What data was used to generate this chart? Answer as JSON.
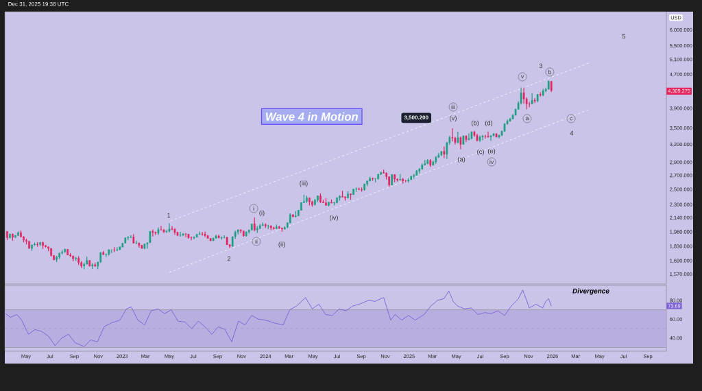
{
  "chart_data": [
    {
      "type": "candlestick",
      "ylabel": "USD",
      "log": true,
      "tick_labels": "y",
      "colors": [
        "#e3245e",
        "#1f9e83",
        "#e3245e",
        "#1f9e83",
        "#1f9e83",
        "#e3245e",
        "#e3245e",
        "#e3245e",
        "#e3245e",
        "#1f9e83",
        "#1f9e83",
        "#e3245e",
        "#1f9e83",
        "#e3245e",
        "#e3245e",
        "#e3245e",
        "#e3245e",
        "#e3245e",
        "#1f9e83",
        "#1f9e83",
        "#1f9e83",
        "#1f9e83",
        "#e3245e",
        "#e3245e",
        "#e3245e",
        "#1f9e83",
        "#e3245e",
        "#e3245e",
        "#1f9e83",
        "#1f9e83",
        "#e3245e",
        "#1f9e83",
        "#e3245e",
        "#1f9e83",
        "#1f9e83",
        "#e3245e",
        "#1f9e83",
        "#1f9e83",
        "#1f9e83",
        "#e3245e",
        "#1f9e83",
        "#1f9e83",
        "#1f9e83",
        "#1f9e83",
        "#1f9e83",
        "#1f9e83",
        "#e3245e",
        "#1f9e83",
        "#e3245e",
        "#e3245e",
        "#1f9e83",
        "#1f9e83",
        "#1f9e83",
        "#e3245e",
        "#e3245e",
        "#1f9e83",
        "#e3245e",
        "#e3245e",
        "#1f9e83",
        "#1f9e83",
        "#e3245e",
        "#e3245e",
        "#e3245e",
        "#1f9e83",
        "#1f9e83",
        "#e3245e",
        "#e3245e",
        "#e3245e",
        "#1f9e83",
        "#1f9e83",
        "#1f9e83",
        "#e3245e",
        "#e3245e",
        "#e3245e",
        "#e3245e",
        "#1f9e83",
        "#1f9e83",
        "#e3245e",
        "#1f9e83",
        "#1f9e83",
        "#e3245e",
        "#e3245e",
        "#1f9e83",
        "#1f9e83",
        "#1f9e83",
        "#e3245e",
        "#e3245e",
        "#1f9e83",
        "#1f9e83",
        "#1f9e83",
        "#e3245e",
        "#1f9e83",
        "#1f9e83",
        "#1f9e83",
        "#e3245e",
        "#1f9e83",
        "#e3245e",
        "#e3245e",
        "#1f9e83",
        "#e3245e",
        "#e3245e",
        "#1f9e83",
        "#1f9e83",
        "#1f9e83",
        "#e3245e",
        "#1f9e83",
        "#1f9e83",
        "#1f9e83",
        "#1f9e83",
        "#1f9e83",
        "#e3245e",
        "#e3245e",
        "#1f9e83",
        "#1f9e83",
        "#e3245e",
        "#e3245e",
        "#e3245e",
        "#1f9e83",
        "#e3245e",
        "#1f9e83",
        "#1f9e83",
        "#1f9e83",
        "#e3245e",
        "#e3245e",
        "#1f9e83",
        "#e3245e",
        "#1f9e83",
        "#1f9e83",
        "#e3245e",
        "#e3245e",
        "#1f9e83",
        "#1f9e83",
        "#1f9e83",
        "#e3245e",
        "#1f9e83",
        "#1f9e83",
        "#1f9e83",
        "#e3245e",
        "#e3245e",
        "#e3245e",
        "#1f9e83",
        "#e3245e",
        "#e3245e",
        "#1f9e83",
        "#e3245e",
        "#e3245e",
        "#1f9e83",
        "#1f9e83",
        "#1f9e83",
        "#1f9e83",
        "#1f9e83",
        "#1f9e83",
        "#1f9e83",
        "#1f9e83",
        "#e3245e",
        "#1f9e83",
        "#1f9e83",
        "#1f9e83",
        "#1f9e83",
        "#e3245e",
        "#1f9e83",
        "#1f9e83",
        "#e3245e",
        "#e3245e",
        "#1f9e83",
        "#e3245e",
        "#1f9e83",
        "#e3245e",
        "#1f9e83",
        "#1f9e83",
        "#e3245e",
        "#e3245e",
        "#1f9e83",
        "#1f9e83",
        "#e3245e",
        "#e3245e",
        "#1f9e83",
        "#1f9e83",
        "#e3245e",
        "#1f9e83",
        "#1f9e83",
        "#1f9e83",
        "#1f9e83",
        "#1f9e83",
        "#1f9e83",
        "#1f9e83",
        "#1f9e83",
        "#1f9e83",
        "#e3245e",
        "#e3245e",
        "#e3245e",
        "#1f9e83",
        "#e3245e",
        "#1f9e83",
        "#e3245e",
        "#1f9e83",
        "#1f9e83",
        "#1f9e83",
        "#e3245e"
      ],
      "xlim": [
        "2022-03-08",
        "2026-10-18"
      ],
      "xticks": [
        {
          "value": "2022-05-01",
          "label": null
        },
        {
          "value": "2022-07-01",
          "label": null
        },
        {
          "value": "2022-09-01",
          "label": null
        },
        {
          "value": "2022-11-01",
          "label": null
        },
        {
          "value": "2023-01-01",
          "label": null
        },
        {
          "value": "2023-03-01",
          "label": null
        },
        {
          "value": "2023-05-01",
          "label": null
        },
        {
          "value": "2023-07-01",
          "label": null
        },
        {
          "value": "2023-09-01",
          "label": null
        },
        {
          "value": "2023-11-01",
          "label": null
        },
        {
          "value": "2024-01-01",
          "label": null
        },
        {
          "value": "2024-03-01",
          "label": null
        },
        {
          "value": "2024-05-01",
          "label": null
        },
        {
          "value": "2024-07-01",
          "label": null
        },
        {
          "value": "2024-09-01",
          "label": null
        },
        {
          "value": "2024-11-01",
          "label": null
        },
        {
          "value": "2025-01-01",
          "label": null
        },
        {
          "value": "2025-03-01",
          "label": null
        },
        {
          "value": "2025-05-01",
          "label": null
        },
        {
          "value": "2025-07-01",
          "label": null
        },
        {
          "value": "2025-09-01",
          "label": null
        },
        {
          "value": "2025-11-01",
          "label": null
        },
        {
          "value": "2026-01-01",
          "label": null
        },
        {
          "value": "2026-03-01",
          "label": null
        },
        {
          "value": "2026-05-01",
          "label": null
        },
        {
          "value": "2026-07-01",
          "label": null
        },
        {
          "value": "2026-09-01",
          "label": null
        }
      ],
      "ylim": [
        1490,
        6640
      ],
      "yticks": [
        {
          "value": 1570,
          "label": "1,570.000"
        },
        {
          "value": 1690,
          "label": "1,690.000"
        },
        {
          "value": 1830,
          "label": "1,830.000"
        },
        {
          "value": 1980,
          "label": "1,980.000"
        },
        {
          "value": 2140,
          "label": "2,140.000"
        },
        {
          "value": 2300,
          "label": "2,300.000"
        },
        {
          "value": 2500,
          "label": "2,500.000"
        },
        {
          "value": 2700,
          "label": "2,700.000"
        },
        {
          "value": 2900,
          "label": "2,900.000"
        },
        {
          "value": 3200,
          "label": "3,200.000"
        },
        {
          "value": 3500,
          "label": "3,500.000"
        },
        {
          "value": 3900,
          "label": "3,900.000"
        },
        {
          "value": 4700,
          "label": "4,700.000"
        },
        {
          "value": 5100,
          "label": "5,100.000"
        },
        {
          "value": 5500,
          "label": "5,500.000"
        },
        {
          "value": 6000,
          "label": "6,000.000"
        }
      ],
      "x": [
        "2022-03-14",
        "2022-03-21",
        "2022-03-28",
        "2022-04-04",
        "2022-04-11",
        "2022-04-18",
        "2022-04-25",
        "2022-05-02",
        "2022-05-09",
        "2022-05-16",
        "2022-05-23",
        "2022-05-30",
        "2022-06-06",
        "2022-06-13",
        "2022-06-20",
        "2022-06-27",
        "2022-07-04",
        "2022-07-11",
        "2022-07-18",
        "2022-07-25",
        "2022-08-01",
        "2022-08-08",
        "2022-08-15",
        "2022-08-22",
        "2022-08-29",
        "2022-09-05",
        "2022-09-12",
        "2022-09-19",
        "2022-09-26",
        "2022-10-03",
        "2022-10-10",
        "2022-10-17",
        "2022-10-24",
        "2022-10-31",
        "2022-11-07",
        "2022-11-14",
        "2022-11-21",
        "2022-11-28",
        "2022-12-05",
        "2022-12-12",
        "2022-12-19",
        "2022-12-26",
        "2023-01-02",
        "2023-01-09",
        "2023-01-16",
        "2023-01-23",
        "2023-01-30",
        "2023-02-06",
        "2023-02-13",
        "2023-02-20",
        "2023-02-27",
        "2023-03-06",
        "2023-03-13",
        "2023-03-20",
        "2023-03-27",
        "2023-04-03",
        "2023-04-10",
        "2023-04-17",
        "2023-04-24",
        "2023-05-01",
        "2023-05-08",
        "2023-05-15",
        "2023-05-22",
        "2023-05-29",
        "2023-06-05",
        "2023-06-12",
        "2023-06-19",
        "2023-06-26",
        "2023-07-03",
        "2023-07-10",
        "2023-07-17",
        "2023-07-24",
        "2023-07-31",
        "2023-08-07",
        "2023-08-14",
        "2023-08-21",
        "2023-08-28",
        "2023-09-04",
        "2023-09-11",
        "2023-09-18",
        "2023-09-25",
        "2023-10-02",
        "2023-10-09",
        "2023-10-16",
        "2023-10-23",
        "2023-10-30",
        "2023-11-06",
        "2023-11-13",
        "2023-11-20",
        "2023-11-27",
        "2023-12-04",
        "2023-12-11",
        "2023-12-18",
        "2023-12-25",
        "2024-01-01",
        "2024-01-08",
        "2024-01-15",
        "2024-01-22",
        "2024-01-29",
        "2024-02-05",
        "2024-02-12",
        "2024-02-19",
        "2024-02-26",
        "2024-03-04",
        "2024-03-11",
        "2024-03-18",
        "2024-03-25",
        "2024-04-01",
        "2024-04-08",
        "2024-04-15",
        "2024-04-22",
        "2024-04-29",
        "2024-05-06",
        "2024-05-13",
        "2024-05-20",
        "2024-05-27",
        "2024-06-03",
        "2024-06-10",
        "2024-06-17",
        "2024-06-24",
        "2024-07-01",
        "2024-07-08",
        "2024-07-15",
        "2024-07-22",
        "2024-07-29",
        "2024-08-05",
        "2024-08-12",
        "2024-08-19",
        "2024-08-26",
        "2024-09-02",
        "2024-09-09",
        "2024-09-16",
        "2024-09-23",
        "2024-09-30",
        "2024-10-07",
        "2024-10-14",
        "2024-10-21",
        "2024-10-28",
        "2024-11-04",
        "2024-11-11",
        "2024-11-18",
        "2024-11-25",
        "2024-12-02",
        "2024-12-09",
        "2024-12-16",
        "2024-12-23",
        "2024-12-30",
        "2025-01-06",
        "2025-01-13",
        "2025-01-20",
        "2025-01-27",
        "2025-02-03",
        "2025-02-10",
        "2025-02-17",
        "2025-02-24",
        "2025-03-03",
        "2025-03-10",
        "2025-03-17",
        "2025-03-24",
        "2025-03-31",
        "2025-04-07",
        "2025-04-14",
        "2025-04-21",
        "2025-04-28",
        "2025-05-05",
        "2025-05-12",
        "2025-05-19",
        "2025-05-26",
        "2025-06-02",
        "2025-06-09",
        "2025-06-16",
        "2025-06-23",
        "2025-06-30",
        "2025-07-07",
        "2025-07-14",
        "2025-07-21",
        "2025-07-28",
        "2025-08-04",
        "2025-08-11",
        "2025-08-18",
        "2025-08-25",
        "2025-09-01",
        "2025-09-08",
        "2025-09-15",
        "2025-09-22",
        "2025-09-29",
        "2025-10-06",
        "2025-10-13",
        "2025-10-20",
        "2025-10-27",
        "2025-11-03",
        "2025-11-10",
        "2025-11-17",
        "2025-11-24",
        "2025-12-01",
        "2025-12-08",
        "2025-12-15",
        "2025-12-22",
        "2025-12-29"
      ],
      "ohlc": [
        [
          1988,
          1990,
          1895,
          1921
        ],
        [
          1921,
          1966,
          1910,
          1958
        ],
        [
          1958,
          1966,
          1890,
          1925
        ],
        [
          1925,
          1948,
          1916,
          1945
        ],
        [
          1945,
          1988,
          1940,
          1975
        ],
        [
          1975,
          1998,
          1925,
          1931
        ],
        [
          1931,
          1936,
          1872,
          1896
        ],
        [
          1896,
          1909,
          1851,
          1883
        ],
        [
          1883,
          1884,
          1807,
          1811
        ],
        [
          1811,
          1849,
          1787,
          1846
        ],
        [
          1846,
          1870,
          1840,
          1853
        ],
        [
          1853,
          1874,
          1828,
          1850
        ],
        [
          1850,
          1876,
          1836,
          1871
        ],
        [
          1871,
          1880,
          1805,
          1839
        ],
        [
          1839,
          1847,
          1822,
          1827
        ],
        [
          1827,
          1830,
          1784,
          1811
        ],
        [
          1811,
          1812,
          1733,
          1742
        ],
        [
          1742,
          1745,
          1697,
          1703
        ],
        [
          1703,
          1739,
          1680,
          1727
        ],
        [
          1727,
          1767,
          1711,
          1766
        ],
        [
          1766,
          1795,
          1754,
          1775
        ],
        [
          1775,
          1808,
          1769,
          1802
        ],
        [
          1802,
          1803,
          1746,
          1747
        ],
        [
          1747,
          1765,
          1728,
          1737
        ],
        [
          1737,
          1740,
          1688,
          1712
        ],
        [
          1712,
          1729,
          1691,
          1717
        ],
        [
          1717,
          1735,
          1654,
          1675
        ],
        [
          1675,
          1688,
          1626,
          1644
        ],
        [
          1644,
          1676,
          1615,
          1661
        ],
        [
          1661,
          1730,
          1660,
          1695
        ],
        [
          1695,
          1700,
          1640,
          1644
        ],
        [
          1644,
          1669,
          1618,
          1656
        ],
        [
          1656,
          1675,
          1637,
          1644
        ],
        [
          1644,
          1682,
          1617,
          1681
        ],
        [
          1681,
          1774,
          1672,
          1770
        ],
        [
          1770,
          1787,
          1747,
          1751
        ],
        [
          1751,
          1760,
          1728,
          1754
        ],
        [
          1754,
          1804,
          1742,
          1797
        ],
        [
          1797,
          1800,
          1765,
          1797
        ],
        [
          1797,
          1824,
          1774,
          1793
        ],
        [
          1793,
          1823,
          1783,
          1798
        ],
        [
          1798,
          1833,
          1795,
          1824
        ],
        [
          1824,
          1865,
          1824,
          1865
        ],
        [
          1865,
          1921,
          1865,
          1920
        ],
        [
          1920,
          1937,
          1896,
          1926
        ],
        [
          1926,
          1949,
          1915,
          1929
        ],
        [
          1929,
          1960,
          1861,
          1865
        ],
        [
          1865,
          1890,
          1853,
          1865
        ],
        [
          1865,
          1871,
          1819,
          1842
        ],
        [
          1842,
          1847,
          1809,
          1811
        ],
        [
          1811,
          1858,
          1804,
          1855
        ],
        [
          1855,
          1869,
          1809,
          1868
        ],
        [
          1868,
          1990,
          1867,
          1989
        ],
        [
          1989,
          2010,
          1934,
          1978
        ],
        [
          1978,
          1987,
          1949,
          1969
        ],
        [
          1969,
          2032,
          1950,
          2007
        ],
        [
          2007,
          2049,
          2000,
          2004
        ],
        [
          2004,
          2015,
          1970,
          1983
        ],
        [
          1983,
          2004,
          1973,
          1990
        ],
        [
          1990,
          2079,
          1977,
          2016
        ],
        [
          2016,
          2048,
          2002,
          2011
        ],
        [
          2011,
          2022,
          1952,
          1977
        ],
        [
          1977,
          1985,
          1937,
          1946
        ],
        [
          1946,
          1983,
          1932,
          1948
        ],
        [
          1948,
          1971,
          1938,
          1961
        ],
        [
          1961,
          1971,
          1925,
          1958
        ],
        [
          1958,
          1959,
          1910,
          1921
        ],
        [
          1921,
          1934,
          1893,
          1919
        ],
        [
          1919,
          1935,
          1902,
          1925
        ],
        [
          1925,
          1963,
          1924,
          1955
        ],
        [
          1955,
          1987,
          1953,
          1962
        ],
        [
          1962,
          1982,
          1942,
          1959
        ],
        [
          1959,
          1987,
          1929,
          1943
        ],
        [
          1943,
          1948,
          1911,
          1914
        ],
        [
          1914,
          1915,
          1885,
          1889
        ],
        [
          1889,
          1922,
          1885,
          1914
        ],
        [
          1914,
          1953,
          1913,
          1940
        ],
        [
          1940,
          1953,
          1915,
          1919
        ],
        [
          1919,
          1933,
          1901,
          1923
        ],
        [
          1923,
          1947,
          1913,
          1925
        ],
        [
          1925,
          1931,
          1846,
          1848
        ],
        [
          1848,
          1851,
          1810,
          1832
        ],
        [
          1832,
          1933,
          1830,
          1932
        ],
        [
          1932,
          1997,
          1909,
          1981
        ],
        [
          1981,
          2009,
          1955,
          2006
        ],
        [
          2006,
          2010,
          1969,
          1993
        ],
        [
          1993,
          1994,
          1932,
          1940
        ],
        [
          1940,
          1988,
          1931,
          1981
        ],
        [
          1981,
          2008,
          1965,
          2002
        ],
        [
          2002,
          2075,
          2001,
          2072
        ],
        [
          2072,
          2146,
          1991,
          2004
        ],
        [
          2004,
          2047,
          1973,
          2019
        ],
        [
          2019,
          2070,
          2016,
          2053
        ],
        [
          2053,
          2088,
          2047,
          2063
        ],
        [
          2063,
          2079,
          2025,
          2049
        ],
        [
          2049,
          2062,
          2013,
          2049
        ],
        [
          2049,
          2055,
          2002,
          2029
        ],
        [
          2029,
          2037,
          2010,
          2018
        ],
        [
          2018,
          2065,
          2016,
          2039
        ],
        [
          2039,
          2049,
          2015,
          2024
        ],
        [
          2024,
          2031,
          1984,
          2013
        ],
        [
          2013,
          2041,
          2010,
          2035
        ],
        [
          2035,
          2088,
          2025,
          2083
        ],
        [
          2083,
          2195,
          2078,
          2179
        ],
        [
          2179,
          2185,
          2146,
          2155
        ],
        [
          2155,
          2223,
          2146,
          2165
        ],
        [
          2165,
          2236,
          2164,
          2233
        ],
        [
          2233,
          2330,
          2228,
          2329
        ],
        [
          2329,
          2431,
          2323,
          2344
        ],
        [
          2344,
          2418,
          2325,
          2392
        ],
        [
          2392,
          2393,
          2292,
          2338
        ],
        [
          2338,
          2352,
          2277,
          2302
        ],
        [
          2302,
          2378,
          2291,
          2360
        ],
        [
          2360,
          2422,
          2334,
          2415
        ],
        [
          2415,
          2450,
          2325,
          2334
        ],
        [
          2334,
          2364,
          2324,
          2327
        ],
        [
          2327,
          2388,
          2286,
          2294
        ],
        [
          2294,
          2339,
          2280,
          2333
        ],
        [
          2333,
          2368,
          2319,
          2322
        ],
        [
          2322,
          2338,
          2293,
          2326
        ],
        [
          2326,
          2392,
          2319,
          2392
        ],
        [
          2392,
          2424,
          2353,
          2411
        ],
        [
          2411,
          2484,
          2398,
          2400
        ],
        [
          2400,
          2412,
          2353,
          2387
        ],
        [
          2387,
          2477,
          2383,
          2443
        ],
        [
          2443,
          2448,
          2364,
          2431
        ],
        [
          2431,
          2509,
          2429,
          2507
        ],
        [
          2507,
          2531,
          2470,
          2512
        ],
        [
          2512,
          2528,
          2491,
          2503
        ],
        [
          2503,
          2529,
          2472,
          2497
        ],
        [
          2497,
          2586,
          2485,
          2577
        ],
        [
          2577,
          2626,
          2546,
          2622
        ],
        [
          2622,
          2685,
          2614,
          2658
        ],
        [
          2658,
          2670,
          2624,
          2653
        ],
        [
          2653,
          2660,
          2603,
          2656
        ],
        [
          2656,
          2722,
          2640,
          2721
        ],
        [
          2721,
          2758,
          2708,
          2747
        ],
        [
          2747,
          2790,
          2731,
          2736
        ],
        [
          2736,
          2750,
          2643,
          2684
        ],
        [
          2684,
          2686,
          2537,
          2563
        ],
        [
          2563,
          2721,
          2563,
          2716
        ],
        [
          2716,
          2721,
          2605,
          2650
        ],
        [
          2650,
          2657,
          2613,
          2633
        ],
        [
          2633,
          2726,
          2632,
          2648
        ],
        [
          2648,
          2664,
          2583,
          2622
        ],
        [
          2622,
          2638,
          2603,
          2621
        ],
        [
          2621,
          2665,
          2597,
          2640
        ],
        [
          2640,
          2697,
          2637,
          2690
        ],
        [
          2690,
          2726,
          2656,
          2703
        ],
        [
          2703,
          2786,
          2699,
          2770
        ],
        [
          2770,
          2817,
          2731,
          2798
        ],
        [
          2798,
          2887,
          2790,
          2861
        ],
        [
          2861,
          2942,
          2861,
          2883
        ],
        [
          2883,
          2955,
          2877,
          2936
        ],
        [
          2936,
          2956,
          2833,
          2858
        ],
        [
          2858,
          2930,
          2857,
          2910
        ],
        [
          2910,
          3005,
          2880,
          2984
        ],
        [
          2984,
          3057,
          2982,
          3023
        ],
        [
          3023,
          3087,
          3005,
          3084
        ],
        [
          3084,
          3168,
          2971,
          3037
        ],
        [
          3037,
          3245,
          2957,
          3237
        ],
        [
          3237,
          3358,
          3194,
          3327
        ],
        [
          3327,
          3500,
          3260,
          3319
        ],
        [
          3319,
          3340,
          3202,
          3240
        ],
        [
          3240,
          3435,
          3225,
          3325
        ],
        [
          3325,
          3345,
          3121,
          3204
        ],
        [
          3204,
          3366,
          3204,
          3358
        ],
        [
          3358,
          3365,
          3245,
          3289
        ],
        [
          3289,
          3403,
          3277,
          3310
        ],
        [
          3310,
          3446,
          3294,
          3432
        ],
        [
          3432,
          3452,
          3340,
          3368
        ],
        [
          3368,
          3398,
          3255,
          3274
        ],
        [
          3274,
          3365,
          3248,
          3337
        ],
        [
          3337,
          3375,
          3282,
          3355
        ],
        [
          3355,
          3377,
          3310,
          3350
        ],
        [
          3350,
          3439,
          3325,
          3337
        ],
        [
          3337,
          3363,
          3268,
          3363
        ],
        [
          3363,
          3409,
          3349,
          3398
        ],
        [
          3398,
          3404,
          3331,
          3335
        ],
        [
          3335,
          3379,
          3311,
          3371
        ],
        [
          3371,
          3454,
          3352,
          3447
        ],
        [
          3447,
          3600,
          3436,
          3586
        ],
        [
          3586,
          3674,
          3576,
          3643
        ],
        [
          3643,
          3707,
          3627,
          3685
        ],
        [
          3685,
          3791,
          3685,
          3759
        ],
        [
          3759,
          3897,
          3759,
          3886
        ],
        [
          3886,
          4059,
          3882,
          4018
        ],
        [
          4018,
          4381,
          3990,
          4251
        ],
        [
          4251,
          4381,
          4004,
          4113
        ],
        [
          4113,
          4147,
          3886,
          4002
        ],
        [
          4002,
          4046,
          3931,
          3999
        ],
        [
          3999,
          4245,
          3997,
          4084
        ],
        [
          4084,
          4132,
          4022,
          4065
        ],
        [
          4065,
          4227,
          4039,
          4218
        ],
        [
          4218,
          4264,
          4166,
          4198
        ],
        [
          4198,
          4353,
          4173,
          4300
        ],
        [
          4300,
          4375,
          4264,
          4338
        ],
        [
          4338,
          4550,
          4332,
          4530
        ],
        [
          4530,
          4532,
          4275,
          4309
        ]
      ],
      "series": [
        {
          "type": "line",
          "color": "#f2f2fa",
          "line_style": "dashed",
          "x": [
            "2023-05-04",
            "2026-04-03"
          ],
          "values": [
            2106,
            5006
          ]
        },
        {
          "type": "line",
          "color": "#f2f2fa",
          "line_style": "dashed",
          "x": [
            "2023-05-01",
            "2026-04-03"
          ],
          "values": [
            1588,
            3876
          ]
        }
      ],
      "annotations": [
        "Dec 31, 2025 19:38 UTC",
        "Wave 4 in Motion",
        "3,500.200",
        "4,309.275",
        "1",
        "2",
        "3",
        "4",
        "5",
        "i",
        "(i)",
        "ii",
        "(ii)",
        "(iii)",
        "(iv)",
        "iii",
        "(v)",
        "(a)",
        "(b)",
        "(c)",
        "(d)",
        "(e)",
        "iv",
        "v",
        "a",
        "b",
        "c"
      ]
    },
    {
      "type": "line",
      "color": "#7e62d6",
      "xlim": [
        "2022-03-08",
        "2026-10-18"
      ],
      "xticks": [
        {
          "value": "2022-05-01",
          "label": "May"
        },
        {
          "value": "2022-07-01",
          "label": "Jul"
        },
        {
          "value": "2022-09-01",
          "label": "Sep"
        },
        {
          "value": "2022-11-01",
          "label": "Nov"
        },
        {
          "value": "2023-01-01",
          "label": "2023"
        },
        {
          "value": "2023-03-01",
          "label": "Mar"
        },
        {
          "value": "2023-05-01",
          "label": "May"
        },
        {
          "value": "2023-07-01",
          "label": "Jul"
        },
        {
          "value": "2023-09-01",
          "label": "Sep"
        },
        {
          "value": "2023-11-01",
          "label": "Nov"
        },
        {
          "value": "2024-01-01",
          "label": "2024"
        },
        {
          "value": "2024-03-01",
          "label": "Mar"
        },
        {
          "value": "2024-05-01",
          "label": "May"
        },
        {
          "value": "2024-07-01",
          "label": "Jul"
        },
        {
          "value": "2024-09-01",
          "label": "Sep"
        },
        {
          "value": "2024-11-01",
          "label": "Nov"
        },
        {
          "value": "2025-01-01",
          "label": "2025"
        },
        {
          "value": "2025-03-01",
          "label": "Mar"
        },
        {
          "value": "2025-05-01",
          "label": "May"
        },
        {
          "value": "2025-07-01",
          "label": "Jul"
        },
        {
          "value": "2025-09-01",
          "label": "Sep"
        },
        {
          "value": "2025-11-01",
          "label": "Nov"
        },
        {
          "value": "2026-01-01",
          "label": "2026"
        },
        {
          "value": "2026-03-01",
          "label": "Mar"
        },
        {
          "value": "2026-05-01",
          "label": "May"
        },
        {
          "value": "2026-07-01",
          "label": "Jul"
        },
        {
          "value": "2026-09-01",
          "label": "Sep"
        }
      ],
      "ylim": [
        26,
        96
      ],
      "yticks": [
        {
          "value": 40,
          "label": "40.00"
        },
        {
          "value": 60,
          "label": "60.00"
        },
        {
          "value": 80,
          "label": "80.00"
        }
      ],
      "bands": [
        {
          "axis": "y",
          "from": 30,
          "to": 70,
          "color": "#b8afe0"
        }
      ],
      "ref_lines": [
        {
          "axis": "y",
          "value": 50,
          "line_style": "dashed",
          "color": "#9a94b8"
        },
        {
          "axis": "y",
          "value": 70,
          "color": "#8c8c8c"
        },
        {
          "axis": "y",
          "value": 30,
          "color": "#8c8c8c"
        }
      ],
      "x": [
        "2022-03-10",
        "2022-03-22",
        "2022-04-08",
        "2022-04-20",
        "2022-05-07",
        "2022-05-24",
        "2022-06-10",
        "2022-06-27",
        "2022-07-14",
        "2022-07-31",
        "2022-08-17",
        "2022-09-03",
        "2022-09-26",
        "2022-10-13",
        "2022-10-30",
        "2022-11-16",
        "2022-12-04",
        "2022-12-26",
        "2023-01-12",
        "2023-01-24",
        "2023-02-10",
        "2023-02-27",
        "2023-03-16",
        "2023-04-02",
        "2023-04-19",
        "2023-05-06",
        "2023-05-23",
        "2023-06-10",
        "2023-06-27",
        "2023-07-14",
        "2023-07-31",
        "2023-08-17",
        "2023-09-03",
        "2023-09-20",
        "2023-10-07",
        "2023-10-24",
        "2023-11-10",
        "2023-11-27",
        "2023-12-14",
        "2024-01-01",
        "2024-01-23",
        "2024-02-15",
        "2024-03-03",
        "2024-03-20",
        "2024-04-12",
        "2024-04-29",
        "2024-05-16",
        "2024-06-02",
        "2024-06-19",
        "2024-07-07",
        "2024-07-24",
        "2024-08-10",
        "2024-08-27",
        "2024-09-19",
        "2024-10-06",
        "2024-10-28",
        "2024-11-15",
        "2024-11-26",
        "2024-12-13",
        "2024-12-30",
        "2025-01-16",
        "2025-02-08",
        "2025-02-25",
        "2025-03-14",
        "2025-03-31",
        "2025-04-12",
        "2025-04-23",
        "2025-05-04",
        "2025-05-22",
        "2025-06-08",
        "2025-06-25",
        "2025-07-12",
        "2025-07-29",
        "2025-08-15",
        "2025-09-01",
        "2025-09-18",
        "2025-10-05",
        "2025-10-17",
        "2025-11-03",
        "2025-11-20",
        "2025-12-07",
        "2025-12-15",
        "2025-12-22",
        "2025-12-29"
      ],
      "values": [
        66,
        62,
        65,
        59,
        44,
        49,
        47,
        42,
        32,
        40,
        44,
        35,
        31,
        38,
        36,
        52,
        56,
        59,
        71,
        73,
        59,
        54,
        69,
        71,
        66,
        70,
        58,
        57,
        50,
        58,
        52,
        44,
        52,
        49,
        36,
        58,
        54,
        64,
        60,
        59,
        56,
        54,
        70,
        74,
        83,
        71,
        76,
        65,
        64,
        71,
        69,
        74,
        76,
        80,
        79,
        83,
        59,
        65,
        59,
        64,
        59,
        65,
        74,
        80,
        82,
        90,
        79,
        74,
        71,
        72,
        65,
        67,
        66,
        69,
        64,
        74,
        81,
        91,
        72,
        76,
        72,
        79,
        82,
        74
      ],
      "annotations": [
        "Divergence",
        "73.69"
      ]
    }
  ]
}
